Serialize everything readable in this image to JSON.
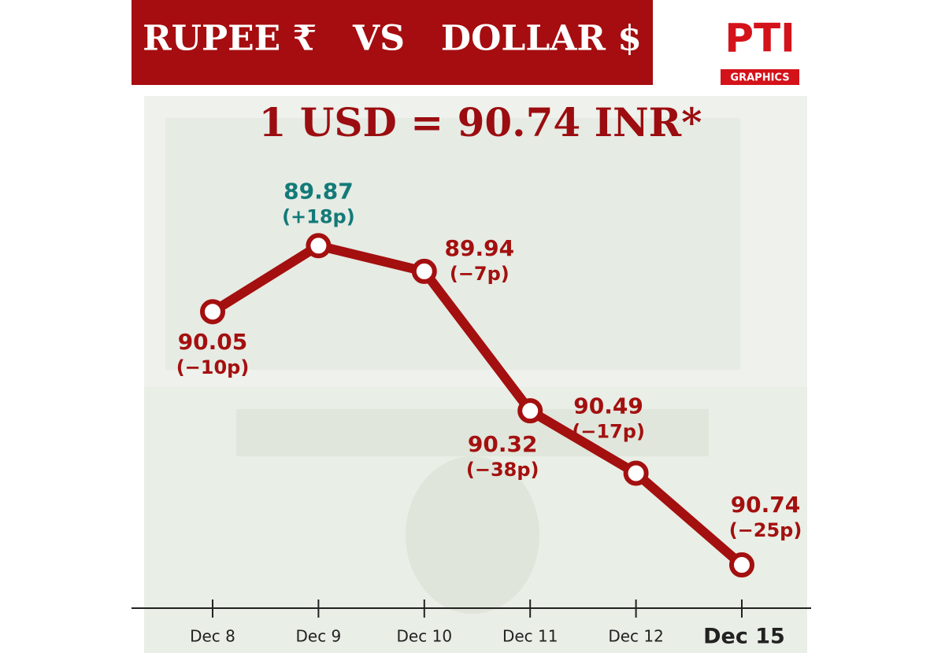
{
  "chart_data": {
    "type": "line",
    "title": "RUPEE ₹   VS   DOLLAR $",
    "subtitle": "1 USD = 90.74 INR*",
    "logo": {
      "text": "PTI",
      "tagline": "GRAPHICS"
    },
    "categories": [
      "Dec 8",
      "Dec 9",
      "Dec 10",
      "Dec 11",
      "Dec 12",
      "Dec 15"
    ],
    "values": [
      90.05,
      89.87,
      89.94,
      90.32,
      90.49,
      90.74
    ],
    "changes": [
      "(−10p)",
      "(+18p)",
      "(−7p)",
      "(−38p)",
      "(−17p)",
      "(−25p)"
    ],
    "color": "#a3100f",
    "label_colors": [
      "#a3100f",
      "#137a78",
      "#a3100f",
      "#a3100f",
      "#a3100f",
      "#a3100f"
    ],
    "ylim": [
      89.7,
      90.86
    ],
    "y_inverted": true,
    "emphasize_last_category": true
  }
}
